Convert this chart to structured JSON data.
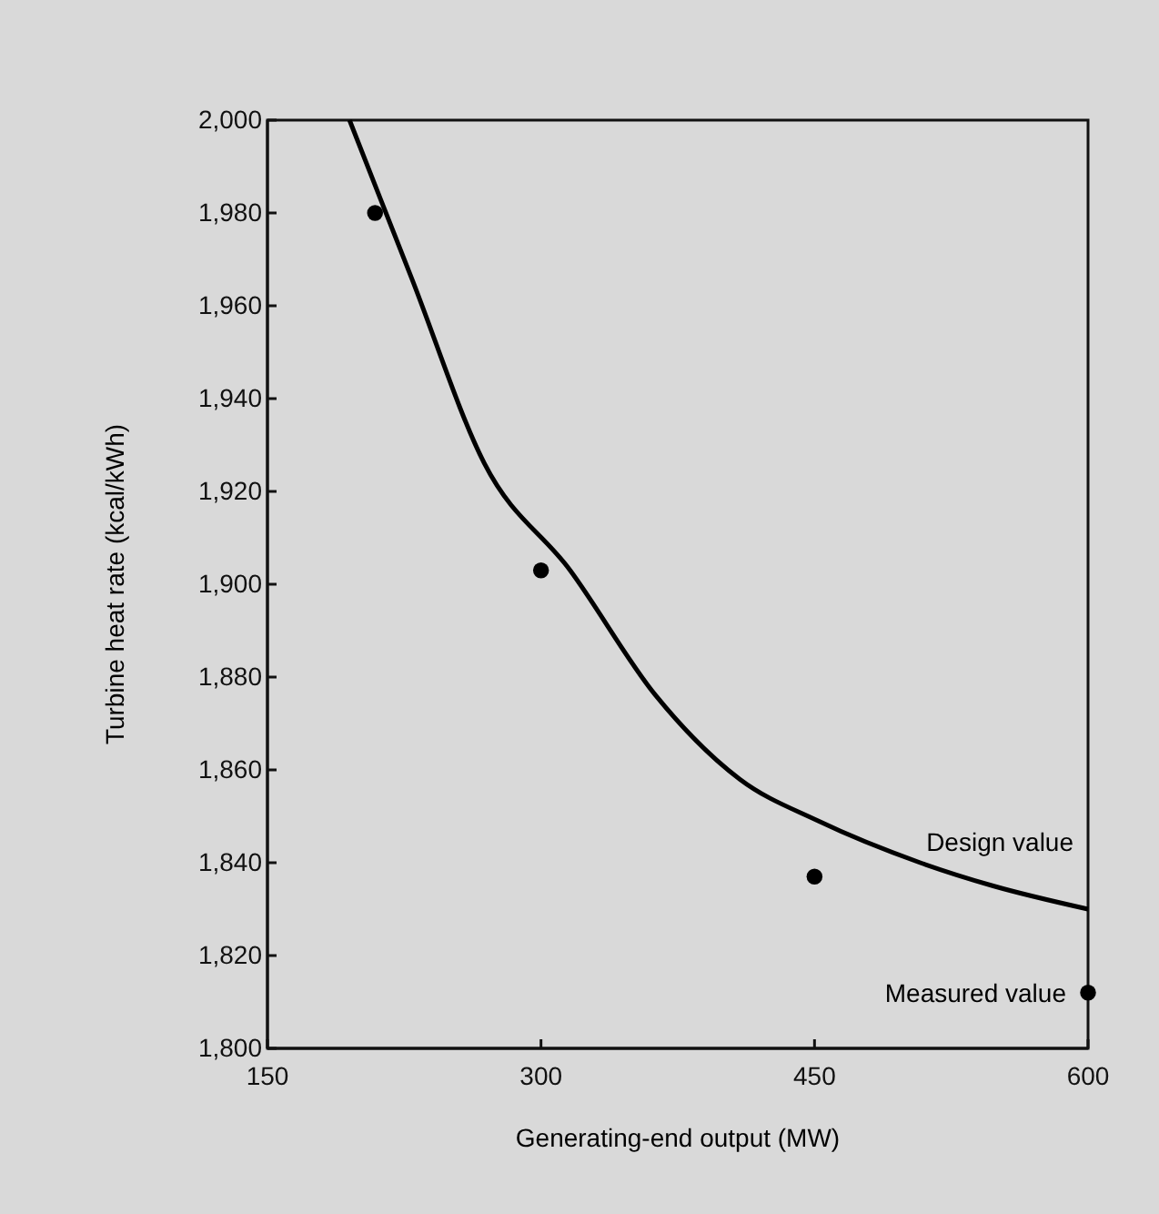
{
  "chart_data": {
    "type": "line",
    "xlabel": "Generating-end output (MW)",
    "ylabel": "Turbine heat rate (kcal/kWh)",
    "xlim": [
      150,
      600
    ],
    "xticks": [
      150,
      300,
      450,
      600
    ],
    "ylim": [
      1800,
      2000
    ],
    "yticks": [
      {
        "value": 1800,
        "label": "1,800"
      },
      {
        "value": 1820,
        "label": "1,820"
      },
      {
        "value": 1840,
        "label": "1,840"
      },
      {
        "value": 1860,
        "label": "1,860"
      },
      {
        "value": 1880,
        "label": "1,880"
      },
      {
        "value": 1900,
        "label": "1,900"
      },
      {
        "value": 1920,
        "label": "1,920"
      },
      {
        "value": 1940,
        "label": "1,940"
      },
      {
        "value": 1960,
        "label": "1,960"
      },
      {
        "value": 1980,
        "label": "1,980"
      },
      {
        "value": 2000,
        "label": "2,000"
      }
    ],
    "grid": false,
    "legend": false,
    "series": [
      {
        "name": "Design value",
        "color": "#000000",
        "marker": "none",
        "line_style": "solid",
        "x": [
          195,
          229,
          269,
          316,
          363,
          409,
          452,
          508,
          548,
          600
        ],
        "values": [
          2000,
          1966,
          1926,
          1903,
          1876,
          1858,
          1849,
          1840,
          1835,
          1830
        ]
      },
      {
        "name": "Measured value",
        "type": "scatter",
        "color": "#000000",
        "marker": "circle",
        "x": [
          209,
          300,
          450,
          600
        ],
        "values": [
          1980,
          1903,
          1837,
          1812
        ]
      }
    ]
  }
}
